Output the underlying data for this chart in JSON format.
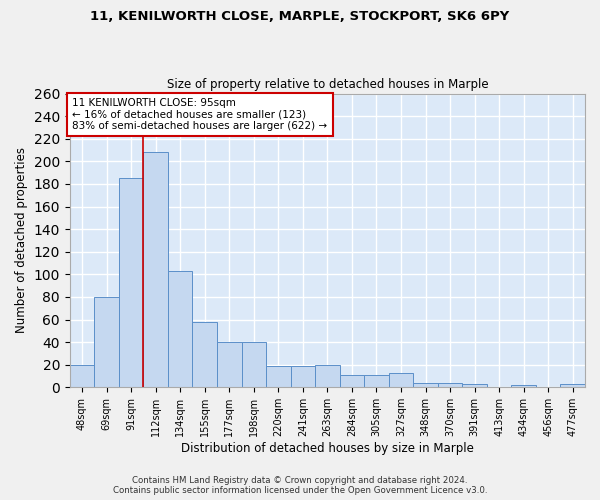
{
  "title": "11, KENILWORTH CLOSE, MARPLE, STOCKPORT, SK6 6PY",
  "subtitle": "Size of property relative to detached houses in Marple",
  "xlabel": "Distribution of detached houses by size in Marple",
  "ylabel": "Number of detached properties",
  "categories": [
    "48sqm",
    "69sqm",
    "91sqm",
    "112sqm",
    "134sqm",
    "155sqm",
    "177sqm",
    "198sqm",
    "220sqm",
    "241sqm",
    "263sqm",
    "284sqm",
    "305sqm",
    "327sqm",
    "348sqm",
    "370sqm",
    "391sqm",
    "413sqm",
    "434sqm",
    "456sqm",
    "477sqm"
  ],
  "values": [
    20,
    80,
    185,
    208,
    103,
    58,
    40,
    40,
    19,
    19,
    20,
    11,
    11,
    13,
    4,
    4,
    3,
    0,
    2,
    0,
    3
  ],
  "bar_color": "#c5d8f0",
  "bar_edge_color": "#5b8fc9",
  "background_color": "#dce9f8",
  "grid_color": "#ffffff",
  "property_label": "11 KENILWORTH CLOSE: 95sqm",
  "annotation_line1": "← 16% of detached houses are smaller (123)",
  "annotation_line2": "83% of semi-detached houses are larger (622) →",
  "vline_color": "#cc0000",
  "vline_x": 2.48,
  "annotation_box_facecolor": "#ffffff",
  "annotation_box_edge_color": "#cc0000",
  "footer_line1": "Contains HM Land Registry data © Crown copyright and database right 2024.",
  "footer_line2": "Contains public sector information licensed under the Open Government Licence v3.0.",
  "ylim": [
    0,
    260
  ],
  "yticks": [
    0,
    20,
    40,
    60,
    80,
    100,
    120,
    140,
    160,
    180,
    200,
    220,
    240,
    260
  ],
  "fig_width": 6.0,
  "fig_height": 5.0,
  "dpi": 100
}
